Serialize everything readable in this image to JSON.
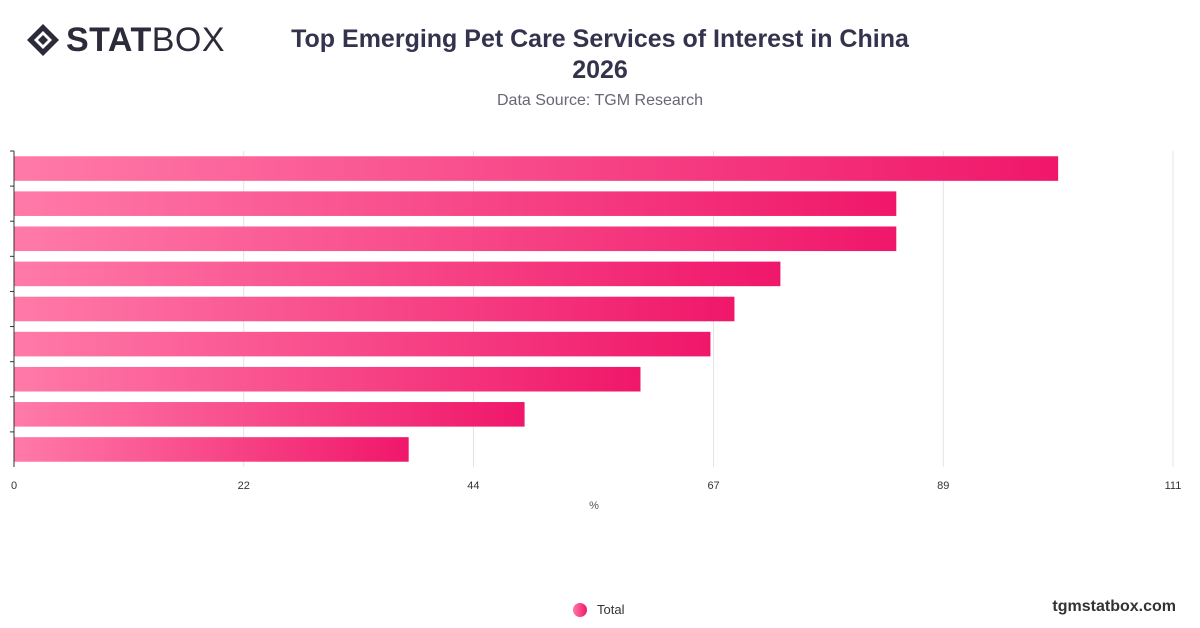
{
  "header": {
    "logo_bold": "STAT",
    "logo_light": "BOX",
    "title_line1": "Top Emerging Pet Care Services of Interest in China",
    "title_line2": "2026",
    "subtitle": "Data Source: TGM Research"
  },
  "footer": {
    "brand": "tgmstatbox.com"
  },
  "colors": {
    "bar_start": "#ff7aa8",
    "bar_end": "#f0176a",
    "grid": "#e3e3e3",
    "axis": "#333333"
  },
  "chart_data": {
    "type": "bar",
    "orientation": "horizontal",
    "categories": [
      "",
      "",
      "",
      "",
      "",
      "",
      "",
      "",
      ""
    ],
    "series": [
      {
        "name": "Total",
        "values": [
          100,
          84.5,
          84.5,
          73.4,
          69,
          66.7,
          60,
          48.9,
          37.8
        ]
      }
    ],
    "x_ticks": [
      0,
      22,
      44,
      67,
      89,
      111
    ],
    "xlim": [
      0,
      111
    ],
    "xlabel": "%",
    "grid": true,
    "legend_position": "bottom"
  }
}
